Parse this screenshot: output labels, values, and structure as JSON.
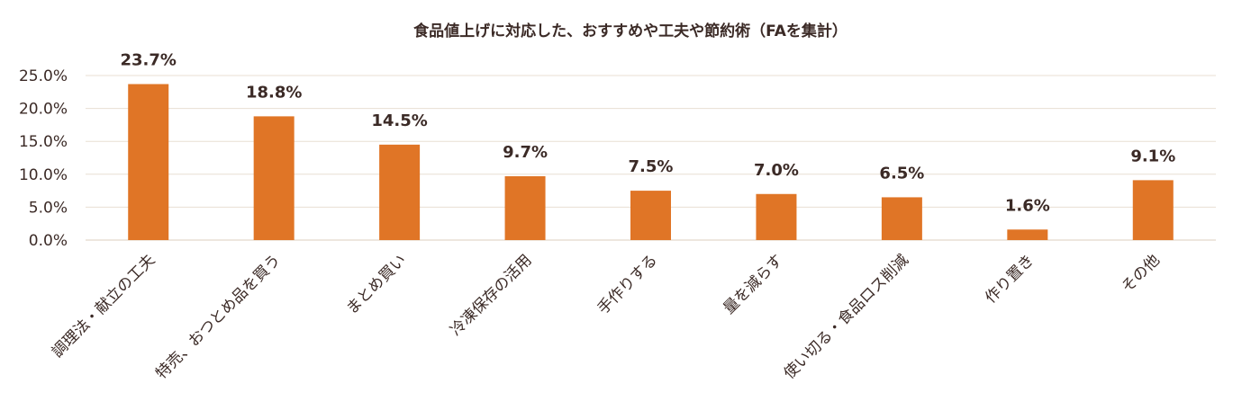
{
  "chart_data": {
    "type": "bar",
    "title": "食品値上げに対応した、おすすめや工夫や節約術（FAを集計）",
    "xlabel": "",
    "ylabel": "",
    "ylim": [
      0,
      25
    ],
    "y_ticks": [
      "0.0%",
      "5.0%",
      "10.0%",
      "15.0%",
      "20.0%",
      "25.0%"
    ],
    "categories": [
      "調理法・献立の工夫",
      "特売、おつとめ品を買う",
      "まとめ買い",
      "冷凍保存の活用",
      "手作りする",
      "量を減らす",
      "使い切る・食品ロス削減",
      "作り置き",
      "その他"
    ],
    "values": [
      23.7,
      18.8,
      14.5,
      9.7,
      7.5,
      7.0,
      6.5,
      1.6,
      9.1
    ],
    "data_labels": [
      "23.7%",
      "18.8%",
      "14.5%",
      "9.7%",
      "7.5%",
      "7.0%",
      "6.5%",
      "1.6%",
      "9.1%"
    ],
    "grid": true,
    "legend": "none",
    "bar_color": "#e07526",
    "text_color": "#3b2a26",
    "grid_color": "#e8dfd3"
  }
}
